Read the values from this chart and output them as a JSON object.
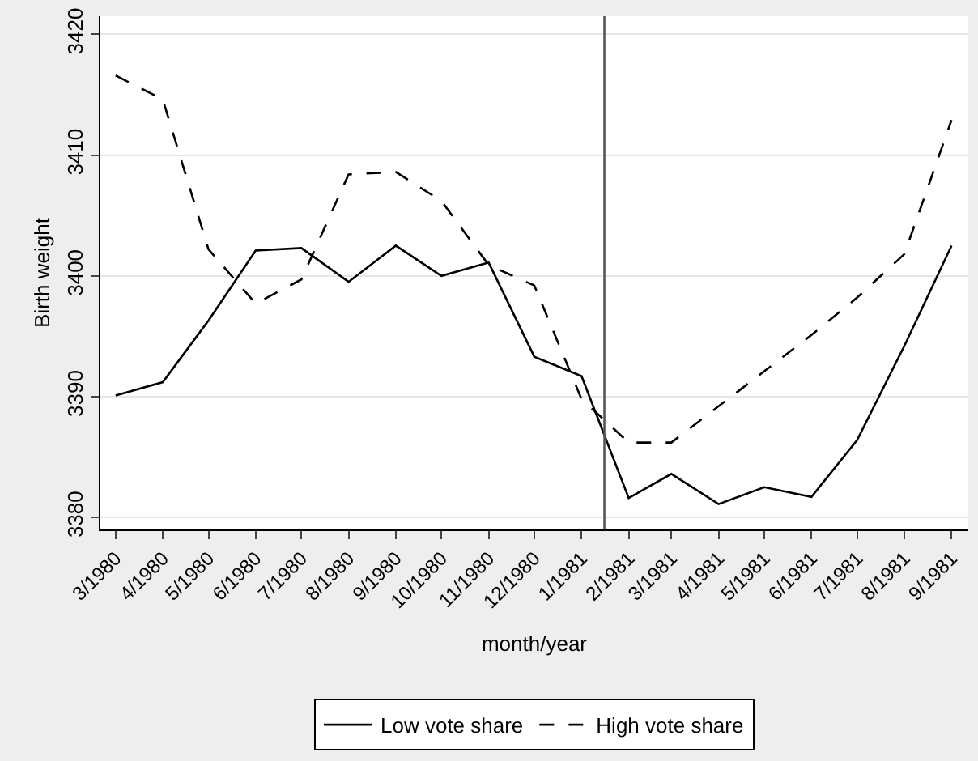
{
  "chart_data": {
    "type": "line",
    "xlabel": "month/year",
    "ylabel": "Birth weight",
    "x": [
      "1980-03",
      "1980-04",
      "1980-05",
      "1980-06",
      "1980-07",
      "1980-08",
      "1980-09",
      "1980-10",
      "1980-11",
      "1980-12",
      "1981-01",
      "1981-02",
      "1981-03",
      "1981-04",
      "1981-05",
      "1981-06",
      "1981-07",
      "1981-08",
      "1981-09"
    ],
    "series": [
      {
        "name": "Low vote share",
        "color": "#000000",
        "line_style": "solid",
        "values": [
          3390.1,
          3391.2,
          3396.3,
          3402.1,
          3402.3,
          3399.5,
          3402.5,
          3400.0,
          3401.1,
          3393.3,
          3391.7,
          3381.6,
          3383.6,
          3381.1,
          3382.5,
          3381.7,
          3386.4,
          3394.2,
          3402.5
        ]
      },
      {
        "name": "High vote share",
        "color": "#000000",
        "line_style": "dashed",
        "values": [
          3416.6,
          3414.6,
          3402.2,
          3397.7,
          3399.7,
          3408.4,
          3408.6,
          3406.2,
          3400.9,
          3399.2,
          3389.8,
          3386.2,
          3386.2,
          3389.2,
          3392.1,
          3395.1,
          3398.2,
          3401.8,
          3412.9
        ]
      }
    ],
    "xlim": [
      "1980-02-20",
      "1981-09-12"
    ],
    "xticks": [
      {
        "value": "1980-03",
        "label": "3/1980"
      },
      {
        "value": "1980-04",
        "label": "4/1980"
      },
      {
        "value": "1980-05",
        "label": "5/1980"
      },
      {
        "value": "1980-06",
        "label": "6/1980"
      },
      {
        "value": "1980-07",
        "label": "7/1980"
      },
      {
        "value": "1980-08",
        "label": "8/1980"
      },
      {
        "value": "1980-09",
        "label": "9/1980"
      },
      {
        "value": "1980-10",
        "label": "10/1980"
      },
      {
        "value": "1980-11",
        "label": "11/1980"
      },
      {
        "value": "1980-12",
        "label": "12/1980"
      },
      {
        "value": "1981-01",
        "label": "1/1981"
      },
      {
        "value": "1981-02",
        "label": "2/1981"
      },
      {
        "value": "1981-03",
        "label": "3/1981"
      },
      {
        "value": "1981-04",
        "label": "4/1981"
      },
      {
        "value": "1981-05",
        "label": "5/1981"
      },
      {
        "value": "1981-06",
        "label": "6/1981"
      },
      {
        "value": "1981-07",
        "label": "7/1981"
      },
      {
        "value": "1981-08",
        "label": "8/1981"
      },
      {
        "value": "1981-09",
        "label": "9/1981"
      }
    ],
    "ylim": [
      3379,
      3421.5
    ],
    "yticks": [
      3380,
      3390,
      3400,
      3410,
      3420
    ],
    "ref_lines": [
      {
        "axis": "x",
        "value": "1981-01-16",
        "color": "#555555"
      }
    ],
    "grid": "y",
    "legend": "bottom",
    "marker": "none"
  }
}
